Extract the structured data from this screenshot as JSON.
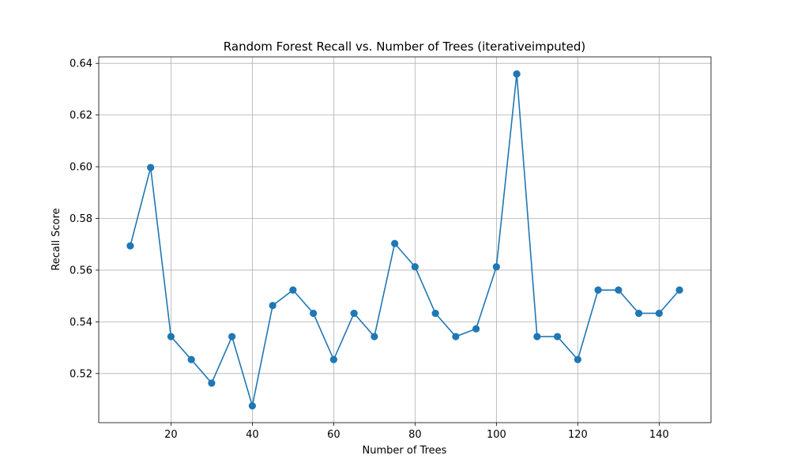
{
  "chart_data": {
    "type": "line",
    "title": "Random Forest Recall vs. Number of Trees (iterativeimputed)",
    "xlabel": "Number of Trees",
    "ylabel": "Recall Score",
    "xlim": [
      2.25,
      152.75
    ],
    "ylim": [
      0.501,
      0.6425
    ],
    "xticks": [
      20,
      40,
      60,
      80,
      100,
      120,
      140
    ],
    "yticks": [
      0.52,
      0.54,
      0.56,
      0.58,
      0.6,
      0.62,
      0.64
    ],
    "grid": true,
    "color": "#1f77b4",
    "series": [
      {
        "x": [
          10,
          15,
          20,
          25,
          30,
          35,
          40,
          45,
          50,
          55,
          60,
          65,
          70,
          75,
          80,
          85,
          90,
          95,
          100,
          105,
          110,
          115,
          120,
          125,
          130,
          135,
          140,
          145
        ],
        "y": [
          0.5694,
          0.5997,
          0.5343,
          0.5254,
          0.5163,
          0.5343,
          0.5075,
          0.5463,
          0.5523,
          0.5433,
          0.5254,
          0.5433,
          0.5343,
          0.5703,
          0.5613,
          0.5433,
          0.5343,
          0.5373,
          0.5613,
          0.6359,
          0.5343,
          0.5343,
          0.5254,
          0.5523,
          0.5523,
          0.5433,
          0.5433,
          0.5523
        ]
      }
    ]
  }
}
